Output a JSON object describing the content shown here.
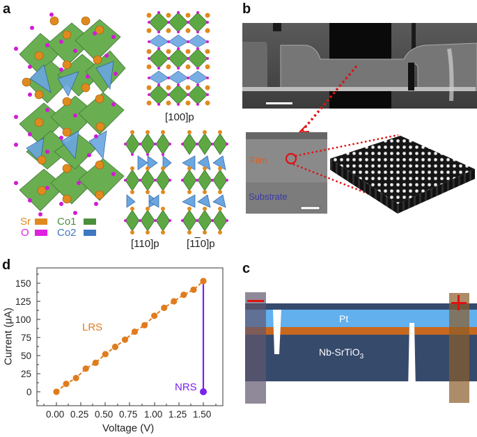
{
  "panels": {
    "a": {
      "label": "a",
      "legend": [
        {
          "name": "Sr",
          "color": "#e08a1e"
        },
        {
          "name": "O",
          "color": "#e020e0"
        },
        {
          "name": "Co1",
          "color": "#4a8f3c"
        },
        {
          "name": "Co2",
          "color": "#3d78c0"
        }
      ],
      "projections": [
        "[100]p",
        "[110]p",
        "[1ī0]p"
      ],
      "projection_110bar_main": "[1",
      "projection_110bar_bar": "1",
      "projection_110bar_rest": "0]p"
    },
    "b": {
      "label": "b",
      "film_label": "Film",
      "substrate_label": "Substrate",
      "film_color": "#d2622a",
      "substrate_color": "#3a3aa8",
      "highlight_color": "#e01010"
    },
    "c": {
      "label": "c",
      "minus_sign": "−",
      "plus_sign": "+",
      "pt_label": "Pt",
      "substrate_label_main": "Nb-SrTiO",
      "substrate_label_sub": "3",
      "colors": {
        "pt": "#62b0ee",
        "oxide": "#c8681e",
        "substrate": "#364a6c",
        "left_electrode": "#7a7288",
        "right_electrode": "#a07a52",
        "sign": "#e01010"
      }
    },
    "d": {
      "label": "d",
      "lrs_label": "LRS",
      "nrs_label": "NRS"
    }
  },
  "chart_data": {
    "type": "line",
    "title": "",
    "xlabel": "Voltage (V)",
    "ylabel": "Current (μA)",
    "xlim": [
      -0.2,
      1.7
    ],
    "ylim": [
      -20,
      170
    ],
    "x_ticks": [
      "0.00",
      "0.25",
      "0.50",
      "0.75",
      "1.00",
      "1.25",
      "1.50"
    ],
    "y_ticks": [
      "0",
      "25",
      "50",
      "75",
      "100",
      "125",
      "150"
    ],
    "grid": false,
    "series": [
      {
        "name": "LRS",
        "color": "#e07c1e",
        "style": "dashed line with circle markers",
        "x": [
          0.0,
          0.1,
          0.2,
          0.3,
          0.4,
          0.5,
          0.6,
          0.7,
          0.8,
          0.9,
          1.0,
          1.1,
          1.2,
          1.3,
          1.4,
          1.5
        ],
        "y": [
          0,
          11,
          19,
          32,
          40,
          52,
          62,
          72,
          83,
          92,
          105,
          116,
          125,
          134,
          141,
          153
        ]
      },
      {
        "name": "NRS",
        "color": "#7a22ee",
        "style": "vertical line drop to single point",
        "x": [
          1.5,
          1.5
        ],
        "y": [
          153,
          0
        ]
      }
    ],
    "annotations": [
      {
        "text": "LRS",
        "x": 0.55,
        "y": 100,
        "color": "#e07c1e"
      },
      {
        "text": "NRS",
        "x": 1.15,
        "y": 7,
        "color": "#7a22ee"
      }
    ]
  }
}
